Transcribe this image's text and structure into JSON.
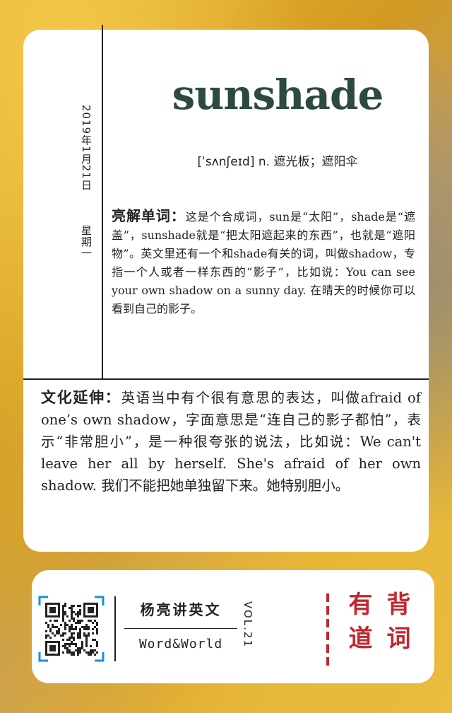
{
  "date": "2019年1月21日",
  "weekday": "星期一",
  "word": "sunshade",
  "pronunciation": "[ˈsʌnʃeɪd] n. 遮光板；遮阳伞",
  "explain": {
    "lead": "亮解单词：",
    "text": "这是个合成词，sun是“太阳”，shade是“遮盖”，sunshade就是“把太阳遮起来的东西”，也就是“遮阳物”。英文里还有一个和shade有关的词，叫做shadow，专指一个人或者一样东西的“影子”，比如说：You can see your own shadow on a sunny day. 在晴天的时候你可以看到自己的影子。"
  },
  "culture": {
    "lead": "文化延伸：",
    "text": "英语当中有个很有意思的表达，叫做afraid of one’s own shadow，字面意思是“连自己的影子都怕”，表示“非常胆小”，是一种很夸张的说法，比如说：We can't leave her all by herself. She's afraid of her own shadow. 我们不能把她单独留下来。她特别胆小。"
  },
  "footer": {
    "brand_cn": "杨亮讲英文",
    "brand_en": "Word&World",
    "volume": "VOL.21",
    "slogan_right": "背词",
    "slogan_left": "有道",
    "qr_icon": "qr-code-icon",
    "accent_color": "#c0282e"
  }
}
